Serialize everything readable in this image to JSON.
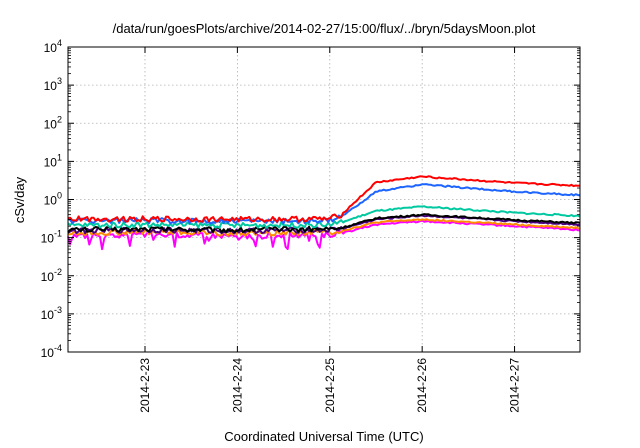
{
  "chart_data": {
    "type": "line",
    "title": "/data/run/goesPlots/archive/2014-02-27/15:00/flux/../bryn/5daysMoon.plot",
    "xlabel": "Coordinated Universal Time (UTC)",
    "ylabel": "cSv/day",
    "x_type": "date",
    "xlim": [
      "2014-02-22T04:00",
      "2014-02-27T17:00"
    ],
    "x_ticks": [
      "2014-2-23",
      "2014-2-24",
      "2014-2-25",
      "2014-2-26",
      "2014-2-27"
    ],
    "x_tick_dates": [
      "2014-02-23T00:00",
      "2014-02-24T00:00",
      "2014-02-25T00:00",
      "2014-02-26T00:00",
      "2014-02-27T00:00"
    ],
    "y_scale": "log",
    "ylim": [
      0.0001,
      10000
    ],
    "y_ticks": [
      {
        "base": "10",
        "exp": "-4"
      },
      {
        "base": "10",
        "exp": "-3"
      },
      {
        "base": "10",
        "exp": "-2"
      },
      {
        "base": "10",
        "exp": "-1"
      },
      {
        "base": "10",
        "exp": "0"
      },
      {
        "base": "10",
        "exp": "1"
      },
      {
        "base": "10",
        "exp": "2"
      },
      {
        "base": "10",
        "exp": "3"
      },
      {
        "base": "10",
        "exp": "4"
      }
    ],
    "grid": true,
    "series": [
      {
        "color": "#ff00ff",
        "values": [
          [
            "2014-02-22T04:00",
            0.11
          ],
          [
            "2014-02-23T00:00",
            0.12
          ],
          [
            "2014-02-24T00:00",
            0.11
          ],
          [
            "2014-02-25T00:00",
            0.12
          ],
          [
            "2014-02-25T03:00",
            0.13
          ],
          [
            "2014-02-25T12:00",
            0.22
          ],
          [
            "2014-02-26T00:00",
            0.27
          ],
          [
            "2014-02-27T00:00",
            0.2
          ],
          [
            "2014-02-27T17:00",
            0.16
          ]
        ]
      },
      {
        "color": "#ff8c00",
        "values": [
          [
            "2014-02-22T04:00",
            0.13
          ],
          [
            "2014-02-23T00:00",
            0.14
          ],
          [
            "2014-02-24T00:00",
            0.13
          ],
          [
            "2014-02-25T00:00",
            0.14
          ],
          [
            "2014-02-25T03:00",
            0.15
          ],
          [
            "2014-02-25T12:00",
            0.25
          ],
          [
            "2014-02-26T00:00",
            0.3
          ],
          [
            "2014-02-27T00:00",
            0.22
          ],
          [
            "2014-02-27T17:00",
            0.18
          ]
        ]
      },
      {
        "color": "#4b0082",
        "values": [
          [
            "2014-02-22T04:00",
            0.15
          ],
          [
            "2014-02-23T00:00",
            0.16
          ],
          [
            "2014-02-24T00:00",
            0.15
          ],
          [
            "2014-02-25T00:00",
            0.16
          ],
          [
            "2014-02-25T03:00",
            0.17
          ],
          [
            "2014-02-25T12:00",
            0.3
          ],
          [
            "2014-02-26T00:00",
            0.38
          ],
          [
            "2014-02-27T00:00",
            0.27
          ],
          [
            "2014-02-27T17:00",
            0.22
          ]
        ]
      },
      {
        "color": "#000000",
        "values": [
          [
            "2014-02-22T04:00",
            0.16
          ],
          [
            "2014-02-23T00:00",
            0.17
          ],
          [
            "2014-02-24T00:00",
            0.16
          ],
          [
            "2014-02-25T00:00",
            0.17
          ],
          [
            "2014-02-25T03:00",
            0.18
          ],
          [
            "2014-02-25T12:00",
            0.32
          ],
          [
            "2014-02-26T00:00",
            0.4
          ],
          [
            "2014-02-27T00:00",
            0.29
          ],
          [
            "2014-02-27T17:00",
            0.24
          ]
        ]
      },
      {
        "color": "#00c8a0",
        "values": [
          [
            "2014-02-22T04:00",
            0.21
          ],
          [
            "2014-02-23T00:00",
            0.22
          ],
          [
            "2014-02-24T00:00",
            0.21
          ],
          [
            "2014-02-25T00:00",
            0.22
          ],
          [
            "2014-02-25T03:00",
            0.25
          ],
          [
            "2014-02-25T12:00",
            0.5
          ],
          [
            "2014-02-26T00:00",
            0.65
          ],
          [
            "2014-02-27T00:00",
            0.45
          ],
          [
            "2014-02-27T17:00",
            0.37
          ]
        ]
      },
      {
        "color": "#1e64ff",
        "values": [
          [
            "2014-02-22T04:00",
            0.28
          ],
          [
            "2014-02-23T00:00",
            0.28
          ],
          [
            "2014-02-24T00:00",
            0.27
          ],
          [
            "2014-02-25T00:00",
            0.28
          ],
          [
            "2014-02-25T03:00",
            0.35
          ],
          [
            "2014-02-25T12:00",
            1.6
          ],
          [
            "2014-02-26T00:00",
            2.5
          ],
          [
            "2014-02-27T00:00",
            1.6
          ],
          [
            "2014-02-27T17:00",
            1.3
          ]
        ]
      },
      {
        "color": "#ff0000",
        "values": [
          [
            "2014-02-22T04:00",
            0.31
          ],
          [
            "2014-02-23T00:00",
            0.31
          ],
          [
            "2014-02-24T00:00",
            0.3
          ],
          [
            "2014-02-25T00:00",
            0.31
          ],
          [
            "2014-02-25T03:00",
            0.4
          ],
          [
            "2014-02-25T12:00",
            2.8
          ],
          [
            "2014-02-26T00:00",
            4.0
          ],
          [
            "2014-02-27T00:00",
            2.7
          ],
          [
            "2014-02-27T17:00",
            2.3
          ]
        ]
      }
    ]
  }
}
